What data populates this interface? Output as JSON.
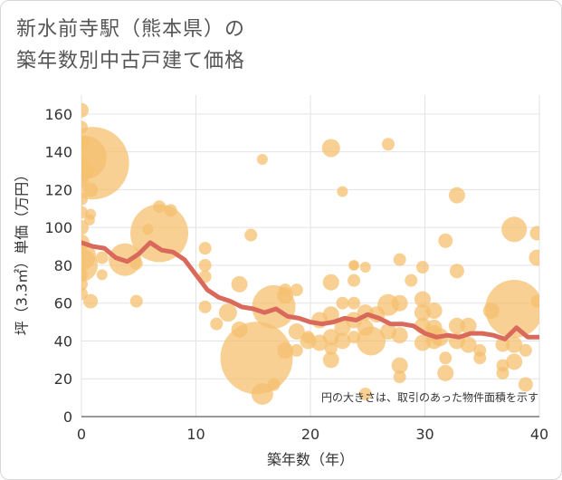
{
  "title_lines": [
    "新水前寺駅（熊本県）の",
    "築年数別中古戸建て価格"
  ],
  "chart_data": {
    "type": "scatter",
    "xlabel": "築年数（年）",
    "ylabel": "坪（3.3㎡）単価（万円）",
    "xlim": [
      0,
      40
    ],
    "ylim": [
      0,
      170
    ],
    "x_ticks": [
      0,
      10,
      20,
      30,
      40
    ],
    "y_ticks": [
      0,
      20,
      40,
      60,
      80,
      100,
      120,
      140,
      160
    ],
    "grid": true,
    "note": "円の大きさは、取引のあった物件面積を示す",
    "colors": {
      "bubble": "#f5c06f",
      "line": "#d9695a"
    },
    "bubbles": [
      {
        "x": 0,
        "y": 162,
        "s": 8
      },
      {
        "x": 0,
        "y": 153,
        "s": 7
      },
      {
        "x": 0,
        "y": 145,
        "s": 8
      },
      {
        "x": 0,
        "y": 135,
        "s": 7
      },
      {
        "x": 0,
        "y": 125,
        "s": 8
      },
      {
        "x": 0,
        "y": 115,
        "s": 7
      },
      {
        "x": 0,
        "y": 108,
        "s": 7
      },
      {
        "x": 0,
        "y": 100,
        "s": 8
      },
      {
        "x": 0,
        "y": 92,
        "s": 9
      },
      {
        "x": 0,
        "y": 85,
        "s": 16
      },
      {
        "x": 0,
        "y": 80,
        "s": 18
      },
      {
        "x": 0,
        "y": 75,
        "s": 7
      },
      {
        "x": 0,
        "y": 70,
        "s": 7
      },
      {
        "x": 0,
        "y": 65,
        "s": 7
      },
      {
        "x": 0.3,
        "y": 137,
        "s": 24
      },
      {
        "x": 0.5,
        "y": 130,
        "s": 8
      },
      {
        "x": 1,
        "y": 134,
        "s": 40
      },
      {
        "x": 0.8,
        "y": 120,
        "s": 8
      },
      {
        "x": 0.8,
        "y": 107,
        "s": 6
      },
      {
        "x": 0.7,
        "y": 104,
        "s": 6
      },
      {
        "x": 0.8,
        "y": 61,
        "s": 8
      },
      {
        "x": 1.8,
        "y": 84,
        "s": 7
      },
      {
        "x": 1.8,
        "y": 75,
        "s": 6
      },
      {
        "x": 3.8,
        "y": 83,
        "s": 18
      },
      {
        "x": 4.8,
        "y": 81,
        "s": 7
      },
      {
        "x": 4.8,
        "y": 61,
        "s": 7
      },
      {
        "x": 5.8,
        "y": 99,
        "s": 6
      },
      {
        "x": 6.8,
        "y": 97,
        "s": 32
      },
      {
        "x": 6.8,
        "y": 111,
        "s": 7
      },
      {
        "x": 7.8,
        "y": 109,
        "s": 7
      },
      {
        "x": 10.8,
        "y": 89,
        "s": 7
      },
      {
        "x": 10.8,
        "y": 80,
        "s": 7
      },
      {
        "x": 10.8,
        "y": 74,
        "s": 7
      },
      {
        "x": 10.8,
        "y": 58,
        "s": 7
      },
      {
        "x": 11.8,
        "y": 49,
        "s": 7
      },
      {
        "x": 12.8,
        "y": 55,
        "s": 10
      },
      {
        "x": 13.8,
        "y": 70,
        "s": 9
      },
      {
        "x": 13.8,
        "y": 46,
        "s": 9
      },
      {
        "x": 14.8,
        "y": 96,
        "s": 7
      },
      {
        "x": 15.8,
        "y": 136,
        "s": 6
      },
      {
        "x": 15.3,
        "y": 31,
        "s": 40
      },
      {
        "x": 15.8,
        "y": 12,
        "s": 12
      },
      {
        "x": 16.8,
        "y": 17,
        "s": 7
      },
      {
        "x": 16.8,
        "y": 58,
        "s": 24
      },
      {
        "x": 17.8,
        "y": 64,
        "s": 9
      },
      {
        "x": 17.8,
        "y": 35,
        "s": 9
      },
      {
        "x": 17.8,
        "y": 67,
        "s": 7
      },
      {
        "x": 18.8,
        "y": 67,
        "s": 7
      },
      {
        "x": 18.8,
        "y": 45,
        "s": 9
      },
      {
        "x": 18.8,
        "y": 35,
        "s": 7
      },
      {
        "x": 19.8,
        "y": 40,
        "s": 9
      },
      {
        "x": 19.8,
        "y": 42,
        "s": 7
      },
      {
        "x": 20.8,
        "y": 39,
        "s": 9
      },
      {
        "x": 20.8,
        "y": 51,
        "s": 9
      },
      {
        "x": 21.8,
        "y": 142,
        "s": 10
      },
      {
        "x": 21.8,
        "y": 71,
        "s": 9
      },
      {
        "x": 21.8,
        "y": 54,
        "s": 9
      },
      {
        "x": 21.8,
        "y": 42,
        "s": 9
      },
      {
        "x": 21.8,
        "y": 36,
        "s": 7
      },
      {
        "x": 21.8,
        "y": 30,
        "s": 9
      },
      {
        "x": 22.8,
        "y": 119,
        "s": 6
      },
      {
        "x": 22.8,
        "y": 60,
        "s": 7
      },
      {
        "x": 22.8,
        "y": 47,
        "s": 9
      },
      {
        "x": 22.8,
        "y": 40,
        "s": 9
      },
      {
        "x": 23.8,
        "y": 80,
        "s": 6
      },
      {
        "x": 23.8,
        "y": 80,
        "s": 5
      },
      {
        "x": 23.8,
        "y": 72,
        "s": 7
      },
      {
        "x": 23.8,
        "y": 60,
        "s": 7
      },
      {
        "x": 23.8,
        "y": 51,
        "s": 9
      },
      {
        "x": 23.8,
        "y": 42,
        "s": 7
      },
      {
        "x": 24.8,
        "y": 79,
        "s": 6
      },
      {
        "x": 24.8,
        "y": 55,
        "s": 9
      },
      {
        "x": 24.8,
        "y": 47,
        "s": 9
      },
      {
        "x": 24.8,
        "y": 12,
        "s": 7
      },
      {
        "x": 25.3,
        "y": 40,
        "s": 16
      },
      {
        "x": 25.8,
        "y": 54,
        "s": 9
      },
      {
        "x": 26.8,
        "y": 144,
        "s": 7
      },
      {
        "x": 26.8,
        "y": 59,
        "s": 12
      },
      {
        "x": 26.8,
        "y": 45,
        "s": 9
      },
      {
        "x": 27.8,
        "y": 83,
        "s": 7
      },
      {
        "x": 27.8,
        "y": 60,
        "s": 9
      },
      {
        "x": 27.8,
        "y": 43,
        "s": 9
      },
      {
        "x": 27.8,
        "y": 27,
        "s": 9
      },
      {
        "x": 27.8,
        "y": 21,
        "s": 7
      },
      {
        "x": 28.8,
        "y": 72,
        "s": 7
      },
      {
        "x": 29.8,
        "y": 79,
        "s": 7
      },
      {
        "x": 29.8,
        "y": 62,
        "s": 9
      },
      {
        "x": 29.8,
        "y": 55,
        "s": 9
      },
      {
        "x": 29.8,
        "y": 48,
        "s": 9
      },
      {
        "x": 29.8,
        "y": 39,
        "s": 9
      },
      {
        "x": 30.8,
        "y": 56,
        "s": 9
      },
      {
        "x": 30.8,
        "y": 47,
        "s": 9
      },
      {
        "x": 30.8,
        "y": 44,
        "s": 9
      },
      {
        "x": 30.8,
        "y": 40,
        "s": 9
      },
      {
        "x": 31.3,
        "y": 42,
        "s": 10
      },
      {
        "x": 31.8,
        "y": 93,
        "s": 8
      },
      {
        "x": 31.8,
        "y": 31,
        "s": 7
      },
      {
        "x": 31.8,
        "y": 23,
        "s": 9
      },
      {
        "x": 32.8,
        "y": 117,
        "s": 9
      },
      {
        "x": 32.8,
        "y": 77,
        "s": 8
      },
      {
        "x": 32.8,
        "y": 48,
        "s": 9
      },
      {
        "x": 32.8,
        "y": 40,
        "s": 9
      },
      {
        "x": 33.8,
        "y": 48,
        "s": 9
      },
      {
        "x": 33.8,
        "y": 38,
        "s": 9
      },
      {
        "x": 34.8,
        "y": 35,
        "s": 7
      },
      {
        "x": 34.8,
        "y": 31,
        "s": 7
      },
      {
        "x": 35.8,
        "y": 56,
        "s": 9
      },
      {
        "x": 36.8,
        "y": 38,
        "s": 8
      },
      {
        "x": 36.8,
        "y": 27,
        "s": 7
      },
      {
        "x": 36.8,
        "y": 23,
        "s": 7
      },
      {
        "x": 37.8,
        "y": 99,
        "s": 14
      },
      {
        "x": 37.8,
        "y": 57,
        "s": 32
      },
      {
        "x": 37.8,
        "y": 38,
        "s": 9
      },
      {
        "x": 37.8,
        "y": 29,
        "s": 9
      },
      {
        "x": 38.8,
        "y": 35,
        "s": 7
      },
      {
        "x": 38.8,
        "y": 17,
        "s": 8
      },
      {
        "x": 39.8,
        "y": 97,
        "s": 8
      },
      {
        "x": 39.8,
        "y": 84,
        "s": 9
      },
      {
        "x": 39.8,
        "y": 61,
        "s": 7
      }
    ],
    "average_line": {
      "x": [
        0,
        1,
        2,
        3,
        4,
        5,
        6,
        7,
        8,
        9,
        10,
        11,
        12,
        13,
        14,
        15,
        16,
        17,
        18,
        19,
        20,
        21,
        22,
        23,
        24,
        25,
        26,
        27,
        28,
        29,
        30,
        31,
        32,
        33,
        34,
        35,
        36,
        37,
        38,
        39,
        40
      ],
      "y": [
        92,
        90,
        89,
        84,
        82,
        86,
        92,
        88,
        87,
        83,
        75,
        67,
        63,
        61,
        58,
        57,
        55,
        57,
        53,
        52,
        50,
        49,
        50,
        52,
        51,
        54,
        52,
        49,
        49,
        48,
        44,
        42,
        43,
        42,
        44,
        44,
        43,
        41,
        47,
        42,
        42
      ]
    }
  }
}
